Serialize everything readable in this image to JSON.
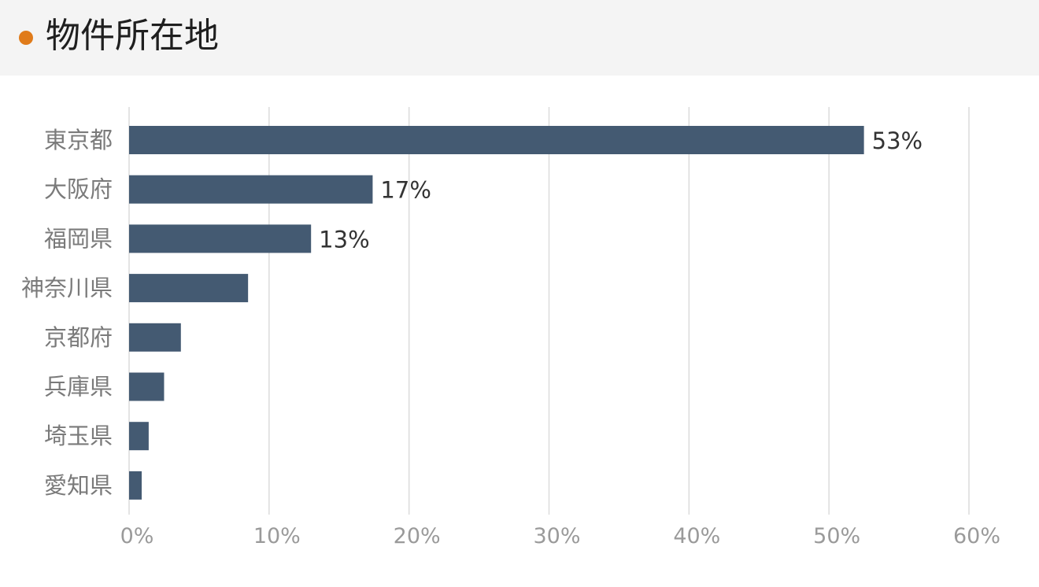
{
  "header": {
    "title": "物件所在地"
  },
  "colors": {
    "accent_dot": "#e07b1a",
    "bar": "#445a72",
    "grid": "#dcdcdc",
    "category_text": "#7a7a7a",
    "tick_text": "#9a9a9a",
    "value_text": "#333333"
  },
  "chart_data": {
    "type": "bar",
    "orientation": "horizontal",
    "categories": [
      "東京都",
      "大阪府",
      "福岡県",
      "神奈川県",
      "京都府",
      "兵庫県",
      "埼玉県",
      "愛知県"
    ],
    "values": [
      52.5,
      17.4,
      13.0,
      8.5,
      3.7,
      2.5,
      1.4,
      0.9
    ],
    "value_labels": [
      "53%",
      "17%",
      "13%",
      "",
      "",
      "",
      "",
      ""
    ],
    "xlim": [
      0,
      60
    ],
    "xticks": [
      0,
      10,
      20,
      30,
      40,
      50,
      60
    ],
    "xtick_labels": [
      "0%",
      "10%",
      "20%",
      "30%",
      "40%",
      "50%",
      "60%"
    ],
    "grid": true,
    "legend": "none"
  }
}
